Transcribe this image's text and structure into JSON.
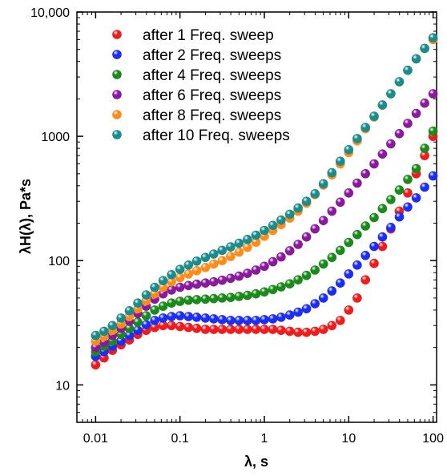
{
  "chart_data": {
    "type": "scatter",
    "title": "",
    "xlabel": "λ, s",
    "ylabel": "λH(λ), Pa*s",
    "x_scale": "log",
    "y_scale": "log",
    "xlim": [
      0.006,
      110
    ],
    "ylim": [
      5,
      10000
    ],
    "x_ticks": [
      0.01,
      0.1,
      1,
      10,
      100
    ],
    "x_tick_labels": [
      "0.01",
      "0.1",
      "1",
      "10",
      "100"
    ],
    "y_ticks": [
      10,
      100,
      1000,
      10000
    ],
    "y_tick_labels": [
      "10",
      "100",
      "1000",
      "10,000"
    ],
    "grid": false,
    "legend_position": "top-left",
    "x": [
      0.01,
      0.0126,
      0.0158,
      0.02,
      0.0251,
      0.0316,
      0.0398,
      0.0501,
      0.0631,
      0.0794,
      0.1,
      0.126,
      0.158,
      0.2,
      0.251,
      0.316,
      0.398,
      0.501,
      0.631,
      0.794,
      1,
      1.26,
      1.58,
      2,
      2.51,
      3.16,
      3.98,
      5.01,
      6.31,
      7.94,
      10,
      12.6,
      15.8,
      20,
      25.1,
      31.6,
      39.8,
      50.1,
      63.1,
      79.4,
      100
    ],
    "series": [
      {
        "name": "after 1 Freq. sweep",
        "color": "#ee1c1c",
        "values": [
          14.5,
          16.5,
          19,
          21,
          23,
          25.5,
          27.5,
          29,
          30,
          30,
          29.5,
          29,
          28.5,
          28,
          28,
          28,
          28,
          28,
          28,
          28,
          28,
          28,
          27.5,
          27,
          26.5,
          26.5,
          27,
          28,
          30,
          33,
          40,
          50,
          70,
          95,
          130,
          180,
          250,
          350,
          500,
          700,
          1000
        ]
      },
      {
        "name": "after 2 Freq. sweeps",
        "color": "#1c2ef2",
        "values": [
          17,
          18.5,
          20.5,
          22.5,
          25,
          27.5,
          30.5,
          33,
          34.5,
          35.5,
          36,
          35.5,
          35,
          34.5,
          34,
          33.5,
          33,
          33,
          33,
          33,
          33.5,
          34,
          35,
          36.5,
          38.5,
          41,
          45,
          50,
          57,
          66,
          78,
          92,
          110,
          130,
          155,
          185,
          225,
          270,
          320,
          390,
          480
        ]
      },
      {
        "name": "after 4 Freq. sweeps",
        "color": "#1a8a1a",
        "values": [
          18.5,
          20.5,
          22.5,
          25.5,
          28.5,
          32,
          36,
          40,
          43,
          45.5,
          47,
          48,
          48.5,
          49,
          49.5,
          50,
          50.5,
          51.5,
          52.5,
          54,
          56,
          58.5,
          61.5,
          65,
          70,
          76,
          84,
          94,
          106,
          121,
          140,
          162,
          190,
          222,
          262,
          310,
          370,
          450,
          550,
          800,
          1100
        ]
      },
      {
        "name": "after 6 Freq. sweeps",
        "color": "#8a1a9c",
        "values": [
          20,
          22,
          25,
          28.5,
          32.5,
          37.5,
          43,
          49,
          54,
          58,
          61,
          63,
          64.5,
          66,
          67.5,
          69.5,
          72,
          75,
          79,
          84,
          90,
          98,
          107,
          120,
          135,
          155,
          180,
          210,
          250,
          295,
          350,
          420,
          500,
          600,
          720,
          870,
          1050,
          1270,
          1530,
          1850,
          2200
        ]
      },
      {
        "name": "after 8 Freq. sweeps",
        "color": "#ff8c1a",
        "values": [
          22.5,
          24.5,
          27.5,
          31,
          35.5,
          41,
          47.5,
          54,
          61,
          67.5,
          73,
          78,
          83,
          88,
          94,
          100,
          108,
          117,
          128,
          141,
          157,
          175,
          195,
          220,
          250,
          290,
          340,
          405,
          490,
          600,
          740,
          920,
          1150,
          1430,
          1780,
          2200,
          2750,
          3400,
          4200,
          5100,
          6000
        ]
      },
      {
        "name": "after 10 Freq. sweeps",
        "color": "#1a8c8c",
        "values": [
          25,
          27,
          30,
          34.5,
          39.5,
          45.5,
          53,
          61,
          69,
          77,
          85,
          92,
          99,
          106,
          113,
          121,
          129,
          138,
          148,
          160,
          175,
          192,
          212,
          236,
          265,
          300,
          345,
          415,
          510,
          630,
          780,
          960,
          1180,
          1450,
          1790,
          2200,
          2750,
          3400,
          4200,
          5100,
          6200
        ]
      }
    ]
  }
}
